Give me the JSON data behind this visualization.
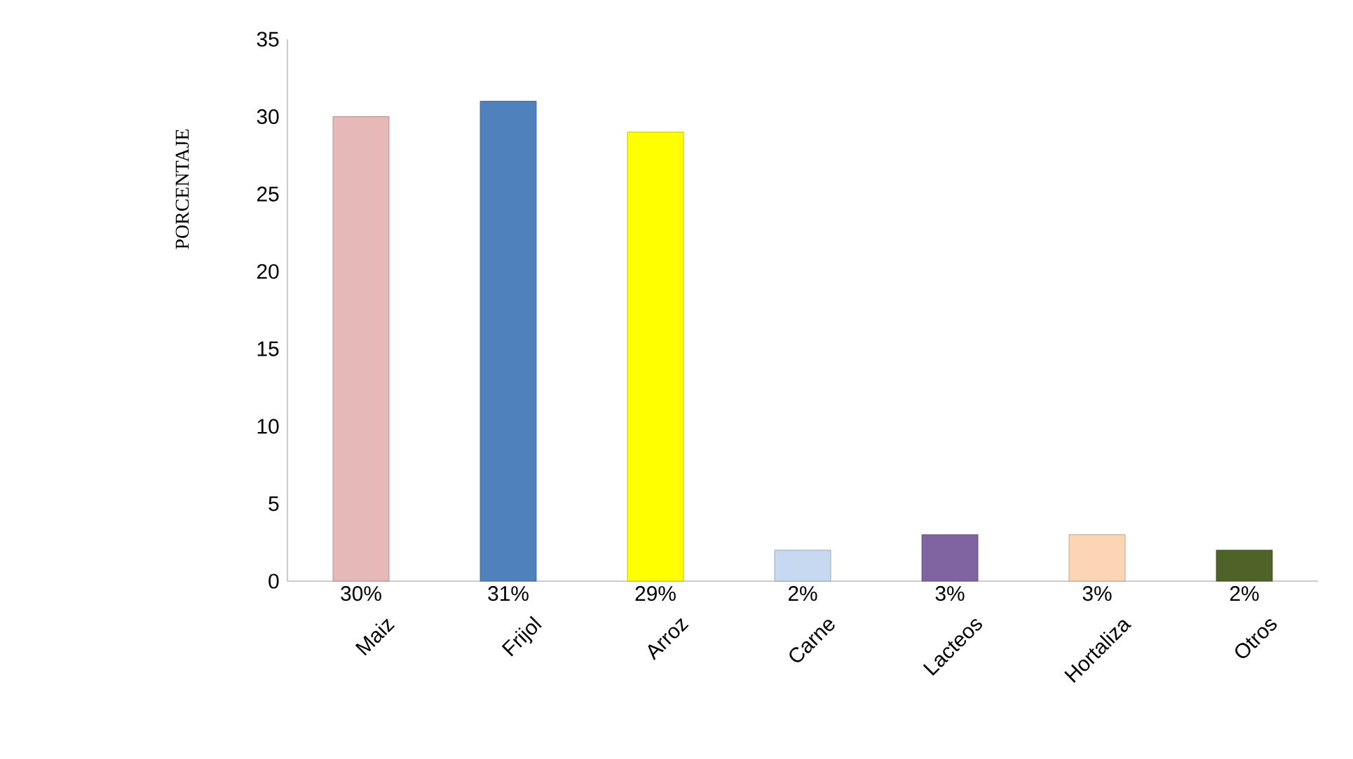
{
  "chart_data": {
    "type": "bar",
    "ylabel": "PORCENTAJE",
    "categories": [
      "Maiz",
      "Frijol",
      "Arroz",
      "Carne",
      "Lacteos",
      "Hortaliza",
      "Otros"
    ],
    "values": [
      30,
      31,
      29,
      2,
      3,
      3,
      2
    ],
    "colors": [
      "#e6b8b7",
      "#4f81bd",
      "#ffff00",
      "#c6d9f1",
      "#8064a2",
      "#fcd5b5",
      "#4f6228"
    ],
    "value_labels": [
      "30%",
      "31%",
      "29%",
      "2%",
      "3%",
      "3%",
      "2%"
    ],
    "ylim": [
      0,
      35
    ],
    "yticks": [
      0,
      5,
      10,
      15,
      20,
      25,
      30,
      35
    ],
    "grid": false
  }
}
